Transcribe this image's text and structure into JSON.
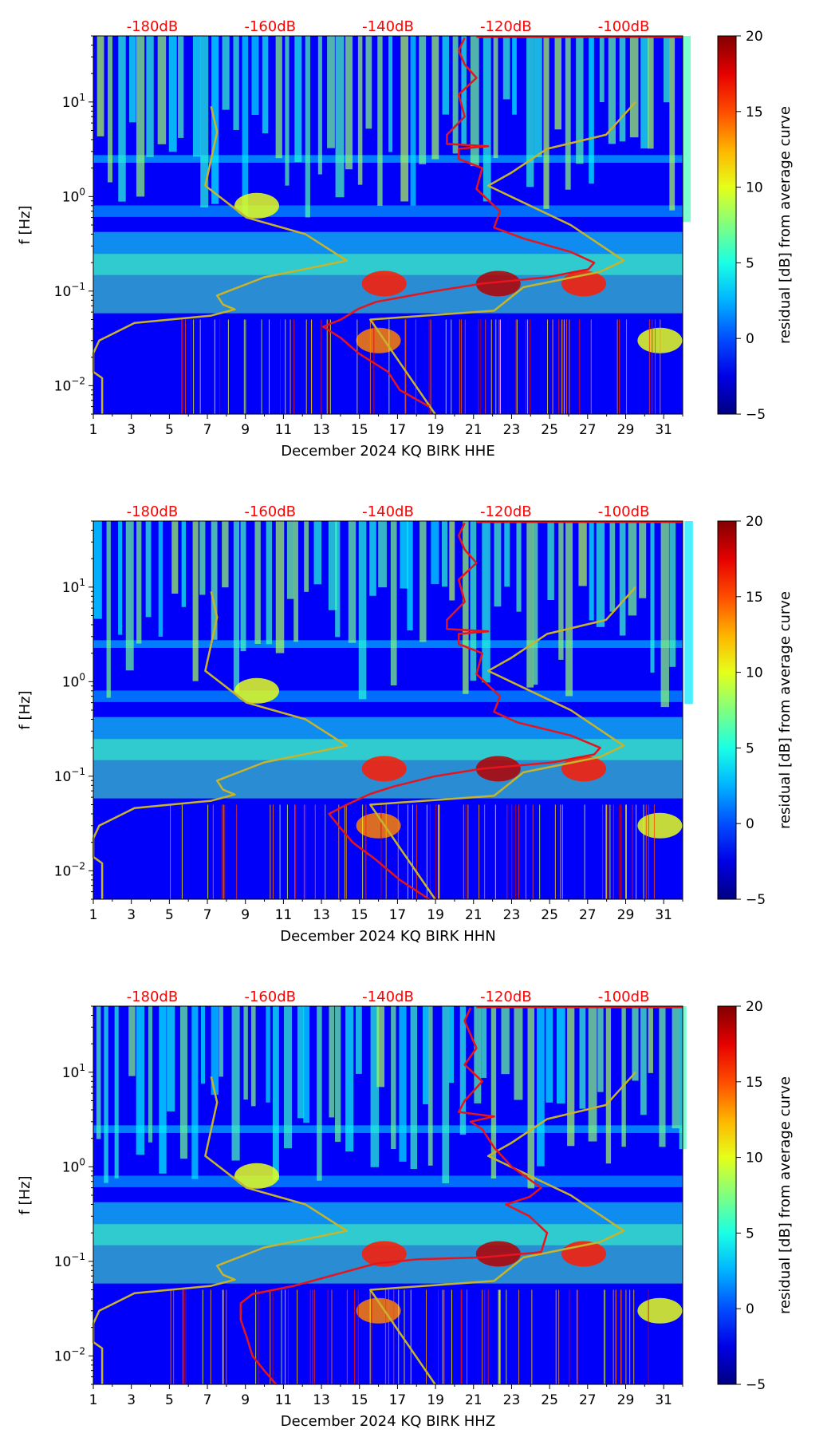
{
  "chart_data": [
    {
      "type": "heatmap",
      "panel": "HHE",
      "title": "",
      "xlabel": "December 2024 KQ BIRK  HHE",
      "ylabel": "f [Hz]",
      "x_ticks": [
        "1",
        "3",
        "5",
        "7",
        "9",
        "11",
        "13",
        "15",
        "17",
        "19",
        "21",
        "23",
        "25",
        "27",
        "29",
        "31"
      ],
      "xlim": [
        1,
        32
      ],
      "y_ticks": [
        {
          "value": 0.01,
          "base": "10",
          "exp": "−2"
        },
        {
          "value": 0.1,
          "base": "10",
          "exp": "−1"
        },
        {
          "value": 1,
          "base": "10",
          "exp": "0"
        },
        {
          "value": 10,
          "base": "10",
          "exp": "1"
        }
      ],
      "ylim": [
        0.005,
        50
      ],
      "y_scale": "log",
      "db_scale": {
        "labels": [
          "-180dB",
          "-160dB",
          "-140dB",
          "-120dB",
          "-100dB"
        ],
        "values": [
          -180,
          -160,
          -140,
          -120,
          -100
        ],
        "range": [
          -190,
          -90
        ]
      },
      "colorbar": {
        "label": "residual [dB] from average curve",
        "ticks": [
          "20",
          "15",
          "10",
          "5",
          "0",
          "−5"
        ],
        "range": [
          -5,
          20
        ],
        "colormap": "jet"
      },
      "series": [
        {
          "name": "reference curve (yellow)",
          "color": "#c8b42a",
          "points": [
            [
              -188.5,
              0.005
            ],
            [
              -188.5,
              0.012
            ],
            [
              -190,
              0.014
            ],
            [
              -190,
              0.022
            ],
            [
              -189,
              0.03
            ],
            [
              -183,
              0.046
            ],
            [
              -170,
              0.055
            ],
            [
              -166,
              0.064
            ],
            [
              -168,
              0.072
            ],
            [
              -169,
              0.09
            ],
            [
              -161,
              0.14
            ],
            [
              -147,
              0.21
            ],
            [
              -154,
              0.4
            ],
            [
              -164,
              0.6
            ],
            [
              -171,
              1.3
            ],
            [
              -170,
              2.5
            ],
            [
              -169,
              4.8
            ],
            [
              -170,
              9
            ]
          ]
        },
        {
          "name": "reference curve (yellow, right)",
          "color": "#c8b42a",
          "points": [
            [
              -132,
              0.005
            ],
            [
              -143,
              0.05
            ],
            [
              -122,
              0.062
            ],
            [
              -117,
              0.11
            ],
            [
              -104,
              0.16
            ],
            [
              -100,
              0.21
            ],
            [
              -109,
              0.5
            ],
            [
              -123,
              1.3
            ],
            [
              -119,
              1.8
            ],
            [
              -113,
              3.2
            ],
            [
              -103,
              4.5
            ],
            [
              -98,
              10
            ]
          ]
        },
        {
          "name": "station PSD (red)",
          "color": "#e8141c",
          "points": [
            [
              -133,
              0.006
            ],
            [
              -138,
              0.009
            ],
            [
              -140,
              0.014
            ],
            [
              -145,
              0.022
            ],
            [
              -148,
              0.032
            ],
            [
              -151,
              0.042
            ],
            [
              -148,
              0.05
            ],
            [
              -145,
              0.065
            ],
            [
              -142,
              0.077
            ],
            [
              -132,
              0.1
            ],
            [
              -124,
              0.12
            ],
            [
              -113,
              0.14
            ],
            [
              -106,
              0.17
            ],
            [
              -105,
              0.2
            ],
            [
              -109,
              0.26
            ],
            [
              -117,
              0.36
            ],
            [
              -122,
              0.47
            ],
            [
              -121,
              0.7
            ],
            [
              -125,
              1.2
            ],
            [
              -124,
              2
            ],
            [
              -128,
              2.5
            ],
            [
              -128,
              3.2
            ],
            [
              -123,
              3.4
            ],
            [
              -130,
              3.6
            ],
            [
              -130,
              4.5
            ],
            [
              -127,
              7
            ],
            [
              -128,
              12
            ],
            [
              -125,
              18
            ],
            [
              -127,
              25
            ],
            [
              -128,
              35
            ],
            [
              -127,
              48
            ]
          ]
        }
      ]
    },
    {
      "type": "heatmap",
      "panel": "HHN",
      "title": "",
      "xlabel": "December 2024 KQ BIRK  HHN",
      "ylabel": "f [Hz]",
      "x_ticks": [
        "1",
        "3",
        "5",
        "7",
        "9",
        "11",
        "13",
        "15",
        "17",
        "19",
        "21",
        "23",
        "25",
        "27",
        "29",
        "31"
      ],
      "xlim": [
        1,
        32
      ],
      "y_ticks": [
        {
          "value": 0.01,
          "base": "10",
          "exp": "−2"
        },
        {
          "value": 0.1,
          "base": "10",
          "exp": "−1"
        },
        {
          "value": 1,
          "base": "10",
          "exp": "0"
        },
        {
          "value": 10,
          "base": "10",
          "exp": "1"
        }
      ],
      "ylim": [
        0.005,
        50
      ],
      "y_scale": "log",
      "db_scale": {
        "labels": [
          "-180dB",
          "-160dB",
          "-140dB",
          "-120dB",
          "-100dB"
        ],
        "values": [
          -180,
          -160,
          -140,
          -120,
          -100
        ],
        "range": [
          -190,
          -90
        ]
      },
      "colorbar": {
        "label": "residual [dB] from average curve",
        "ticks": [
          "20",
          "15",
          "10",
          "5",
          "0",
          "−5"
        ],
        "range": [
          -5,
          20
        ],
        "colormap": "jet"
      },
      "series": [
        {
          "name": "reference curve (yellow)",
          "color": "#c8b42a",
          "points": [
            [
              -188.5,
              0.005
            ],
            [
              -188.5,
              0.012
            ],
            [
              -190,
              0.014
            ],
            [
              -190,
              0.022
            ],
            [
              -189,
              0.03
            ],
            [
              -183,
              0.046
            ],
            [
              -170,
              0.055
            ],
            [
              -166,
              0.064
            ],
            [
              -168,
              0.072
            ],
            [
              -169,
              0.09
            ],
            [
              -161,
              0.14
            ],
            [
              -147,
              0.21
            ],
            [
              -154,
              0.4
            ],
            [
              -164,
              0.6
            ],
            [
              -171,
              1.3
            ],
            [
              -170,
              2.5
            ],
            [
              -169,
              4.8
            ],
            [
              -170,
              9
            ]
          ]
        },
        {
          "name": "reference curve (yellow, right)",
          "color": "#c8b42a",
          "points": [
            [
              -132,
              0.005
            ],
            [
              -143,
              0.05
            ],
            [
              -122,
              0.062
            ],
            [
              -117,
              0.11
            ],
            [
              -104,
              0.16
            ],
            [
              -100,
              0.21
            ],
            [
              -109,
              0.5
            ],
            [
              -123,
              1.3
            ],
            [
              -119,
              1.8
            ],
            [
              -113,
              3.2
            ],
            [
              -103,
              4.5
            ],
            [
              -98,
              10
            ]
          ]
        },
        {
          "name": "station PSD (red)",
          "color": "#e8141c",
          "points": [
            [
              -133,
              0.005
            ],
            [
              -138,
              0.008
            ],
            [
              -142,
              0.013
            ],
            [
              -146,
              0.02
            ],
            [
              -148,
              0.028
            ],
            [
              -150,
              0.04
            ],
            [
              -147,
              0.05
            ],
            [
              -143,
              0.065
            ],
            [
              -139,
              0.078
            ],
            [
              -132,
              0.1
            ],
            [
              -124,
              0.12
            ],
            [
              -112,
              0.14
            ],
            [
              -105,
              0.17
            ],
            [
              -104,
              0.2
            ],
            [
              -109,
              0.27
            ],
            [
              -118,
              0.37
            ],
            [
              -122,
              0.48
            ],
            [
              -121,
              0.7
            ],
            [
              -125,
              1.2
            ],
            [
              -124,
              2
            ],
            [
              -128,
              2.5
            ],
            [
              -128,
              3.2
            ],
            [
              -123,
              3.4
            ],
            [
              -130,
              3.6
            ],
            [
              -130,
              4.5
            ],
            [
              -127,
              7
            ],
            [
              -128,
              12
            ],
            [
              -125,
              18
            ],
            [
              -127,
              25
            ],
            [
              -128,
              35
            ],
            [
              -127,
              48
            ]
          ]
        }
      ]
    },
    {
      "type": "heatmap",
      "panel": "HHZ",
      "title": "",
      "xlabel": "December 2024 KQ BIRK  HHZ",
      "ylabel": "f [Hz]",
      "x_ticks": [
        "1",
        "3",
        "5",
        "7",
        "9",
        "11",
        "13",
        "15",
        "17",
        "19",
        "21",
        "23",
        "25",
        "27",
        "29",
        "31"
      ],
      "xlim": [
        1,
        32
      ],
      "y_ticks": [
        {
          "value": 0.01,
          "base": "10",
          "exp": "−2"
        },
        {
          "value": 0.1,
          "base": "10",
          "exp": "−1"
        },
        {
          "value": 1,
          "base": "10",
          "exp": "0"
        },
        {
          "value": 10,
          "base": "10",
          "exp": "1"
        }
      ],
      "ylim": [
        0.005,
        50
      ],
      "y_scale": "log",
      "db_scale": {
        "labels": [
          "-180dB",
          "-160dB",
          "-140dB",
          "-120dB",
          "-100dB"
        ],
        "values": [
          -180,
          -160,
          -140,
          -120,
          -100
        ],
        "range": [
          -190,
          -90
        ]
      },
      "colorbar": {
        "label": "residual [dB] from average curve",
        "ticks": [
          "20",
          "15",
          "10",
          "5",
          "0",
          "−5"
        ],
        "range": [
          -5,
          20
        ],
        "colormap": "jet"
      },
      "series": [
        {
          "name": "reference curve (yellow)",
          "color": "#c8b42a",
          "points": [
            [
              -188.5,
              0.005
            ],
            [
              -188.5,
              0.012
            ],
            [
              -190,
              0.014
            ],
            [
              -190,
              0.022
            ],
            [
              -189,
              0.03
            ],
            [
              -183,
              0.046
            ],
            [
              -170,
              0.055
            ],
            [
              -166,
              0.064
            ],
            [
              -168,
              0.072
            ],
            [
              -169,
              0.09
            ],
            [
              -161,
              0.14
            ],
            [
              -147,
              0.21
            ],
            [
              -154,
              0.4
            ],
            [
              -164,
              0.6
            ],
            [
              -171,
              1.3
            ],
            [
              -170,
              2.5
            ],
            [
              -169,
              4.8
            ],
            [
              -170,
              9
            ]
          ]
        },
        {
          "name": "reference curve (yellow, right)",
          "color": "#c8b42a",
          "points": [
            [
              -132,
              0.005
            ],
            [
              -143,
              0.05
            ],
            [
              -122,
              0.062
            ],
            [
              -117,
              0.11
            ],
            [
              -104,
              0.16
            ],
            [
              -100,
              0.21
            ],
            [
              -109,
              0.5
            ],
            [
              -123,
              1.3
            ],
            [
              -119,
              1.8
            ],
            [
              -113,
              3.2
            ],
            [
              -103,
              4.5
            ],
            [
              -98,
              10
            ]
          ]
        },
        {
          "name": "station PSD (red)",
          "color": "#e8141c",
          "points": [
            [
              -159,
              0.005
            ],
            [
              -161,
              0.007
            ],
            [
              -163,
              0.01
            ],
            [
              -164,
              0.016
            ],
            [
              -165,
              0.024
            ],
            [
              -165,
              0.036
            ],
            [
              -163,
              0.045
            ],
            [
              -156,
              0.055
            ],
            [
              -148,
              0.075
            ],
            [
              -142,
              0.095
            ],
            [
              -135,
              0.105
            ],
            [
              -124,
              0.11
            ],
            [
              -114,
              0.125
            ],
            [
              -113,
              0.2
            ],
            [
              -116,
              0.3
            ],
            [
              -120,
              0.4
            ],
            [
              -116,
              0.48
            ],
            [
              -114,
              0.6
            ],
            [
              -119,
              1
            ],
            [
              -122,
              1.6
            ],
            [
              -124,
              2.5
            ],
            [
              -126,
              3
            ],
            [
              -122,
              3.4
            ],
            [
              -128,
              3.8
            ],
            [
              -127,
              5
            ],
            [
              -124,
              8
            ],
            [
              -127,
              12
            ],
            [
              -125,
              18
            ],
            [
              -126,
              25
            ],
            [
              -127,
              35
            ],
            [
              -126,
              48
            ]
          ]
        }
      ]
    }
  ]
}
